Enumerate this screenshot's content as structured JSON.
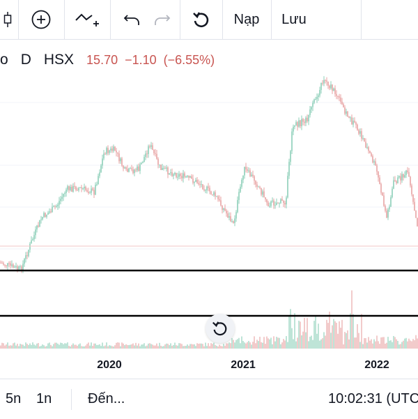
{
  "toolbar": {
    "candles_icon": "candlestick-icon",
    "add_icon": "plus-circle-icon",
    "indicators_icon": "indicators-icon",
    "undo_icon": "undo-icon",
    "redo_icon": "redo-icon",
    "reset_icon": "rotate-ccw-icon",
    "load_label": "Nạp",
    "save_label": "Lưu"
  },
  "symbol": {
    "name_fragment": "o",
    "interval": "D",
    "exchange": "HSX",
    "last_price": "15.70",
    "change": "−1.10",
    "change_percent": "(−6.55%)",
    "change_color": "#c85450"
  },
  "chart": {
    "reset_icon": "reset-chart-icon",
    "up_color": "#8ccfb8",
    "down_color": "#e8a3a3",
    "horizontal_lines": 2
  },
  "time_axis": {
    "labels": [
      "2020",
      "2021",
      "2022"
    ]
  },
  "bottom_bar": {
    "range_5y": "5n",
    "range_1y": "1n",
    "goto": "Đến...",
    "clock": "10:02:31 (UTC"
  }
}
